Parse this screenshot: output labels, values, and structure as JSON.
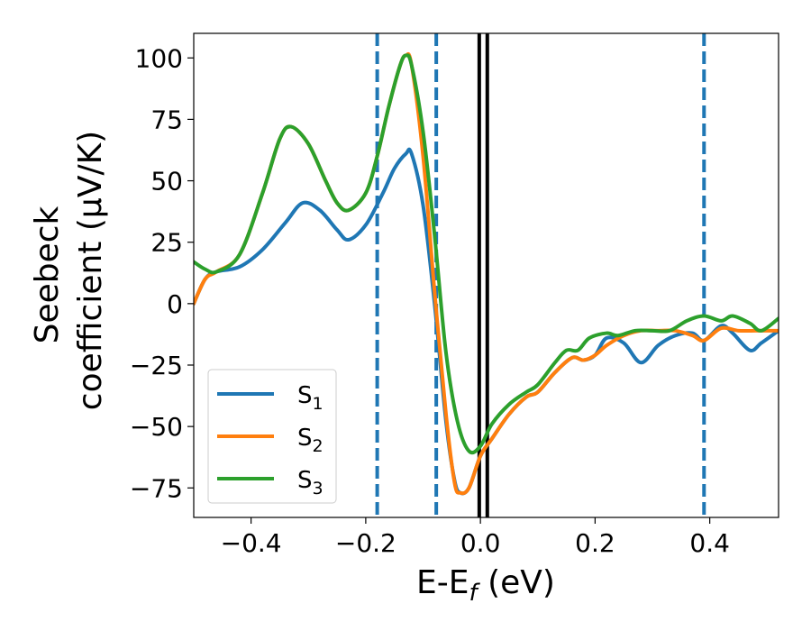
{
  "chart_data": {
    "type": "line",
    "xlabel": "E-E",
    "xlabel_sub": "f",
    "xlabel_suffix": " (eV)",
    "ylabel_line1": "Seebeck",
    "ylabel_line2": "coefficient  (μV/K)",
    "xlim": [
      -0.5,
      0.52
    ],
    "ylim": [
      -87,
      110
    ],
    "xticks": [
      -0.4,
      -0.2,
      0.0,
      0.2,
      0.4
    ],
    "xtick_labels": [
      "−0.4",
      "−0.2",
      "0.0",
      "0.2",
      "0.4"
    ],
    "yticks": [
      100,
      75,
      50,
      25,
      0,
      -25,
      -50,
      -75
    ],
    "ytick_labels": [
      "100",
      "75",
      "50",
      "25",
      "0",
      "−25",
      "−50",
      "−75"
    ],
    "grid": false,
    "legend_position": "lower-left",
    "series": [
      {
        "name": "S",
        "sub": "1",
        "color": "#1f77b4",
        "points": [
          [
            -0.5,
            0
          ],
          [
            -0.48,
            10
          ],
          [
            -0.46,
            13
          ],
          [
            -0.42,
            15
          ],
          [
            -0.38,
            22
          ],
          [
            -0.34,
            33
          ],
          [
            -0.31,
            41
          ],
          [
            -0.28,
            38
          ],
          [
            -0.25,
            30
          ],
          [
            -0.23,
            26
          ],
          [
            -0.2,
            32
          ],
          [
            -0.17,
            45
          ],
          [
            -0.15,
            55
          ],
          [
            -0.13,
            61
          ],
          [
            -0.12,
            61
          ],
          [
            -0.1,
            40
          ],
          [
            -0.08,
            0
          ],
          [
            -0.06,
            -48
          ],
          [
            -0.045,
            -72
          ],
          [
            -0.035,
            -77
          ],
          [
            -0.02,
            -75
          ],
          [
            0.0,
            -62
          ],
          [
            0.02,
            -55
          ],
          [
            0.05,
            -45
          ],
          [
            0.08,
            -38
          ],
          [
            0.1,
            -36
          ],
          [
            0.13,
            -28
          ],
          [
            0.16,
            -22
          ],
          [
            0.18,
            -23
          ],
          [
            0.2,
            -21
          ],
          [
            0.22,
            -14
          ],
          [
            0.25,
            -16
          ],
          [
            0.28,
            -24
          ],
          [
            0.31,
            -17
          ],
          [
            0.34,
            -13
          ],
          [
            0.37,
            -12
          ],
          [
            0.39,
            -15
          ],
          [
            0.42,
            -9
          ],
          [
            0.44,
            -12
          ],
          [
            0.47,
            -19
          ],
          [
            0.49,
            -16
          ],
          [
            0.52,
            -11
          ]
        ]
      },
      {
        "name": "S",
        "sub": "2",
        "color": "#ff7f0e",
        "points": [
          [
            -0.5,
            0
          ],
          [
            -0.48,
            10
          ],
          [
            -0.46,
            13
          ],
          [
            -0.42,
            20
          ],
          [
            -0.38,
            45
          ],
          [
            -0.35,
            67
          ],
          [
            -0.33,
            72
          ],
          [
            -0.3,
            65
          ],
          [
            -0.27,
            50
          ],
          [
            -0.25,
            41
          ],
          [
            -0.23,
            38
          ],
          [
            -0.2,
            45
          ],
          [
            -0.18,
            60
          ],
          [
            -0.16,
            80
          ],
          [
            -0.14,
            97
          ],
          [
            -0.13,
            101
          ],
          [
            -0.12,
            97
          ],
          [
            -0.1,
            60
          ],
          [
            -0.08,
            5
          ],
          [
            -0.06,
            -45
          ],
          [
            -0.045,
            -73
          ],
          [
            -0.035,
            -77
          ],
          [
            -0.02,
            -75
          ],
          [
            0.0,
            -62
          ],
          [
            0.02,
            -55
          ],
          [
            0.05,
            -45
          ],
          [
            0.08,
            -38
          ],
          [
            0.1,
            -36
          ],
          [
            0.13,
            -28
          ],
          [
            0.16,
            -22
          ],
          [
            0.18,
            -23
          ],
          [
            0.2,
            -21
          ],
          [
            0.22,
            -17
          ],
          [
            0.25,
            -13
          ],
          [
            0.28,
            -11
          ],
          [
            0.31,
            -11
          ],
          [
            0.34,
            -11
          ],
          [
            0.37,
            -13
          ],
          [
            0.39,
            -15
          ],
          [
            0.42,
            -10
          ],
          [
            0.45,
            -11
          ],
          [
            0.48,
            -11
          ],
          [
            0.52,
            -11
          ]
        ]
      },
      {
        "name": "S",
        "sub": "3",
        "color": "#2ca02c",
        "points": [
          [
            -0.5,
            17
          ],
          [
            -0.48,
            14
          ],
          [
            -0.46,
            13
          ],
          [
            -0.42,
            20
          ],
          [
            -0.38,
            45
          ],
          [
            -0.35,
            67
          ],
          [
            -0.33,
            72
          ],
          [
            -0.3,
            65
          ],
          [
            -0.27,
            50
          ],
          [
            -0.25,
            41
          ],
          [
            -0.23,
            38
          ],
          [
            -0.2,
            45
          ],
          [
            -0.18,
            60
          ],
          [
            -0.16,
            80
          ],
          [
            -0.14,
            97
          ],
          [
            -0.13,
            101
          ],
          [
            -0.12,
            97
          ],
          [
            -0.1,
            70
          ],
          [
            -0.08,
            28
          ],
          [
            -0.06,
            -20
          ],
          [
            -0.04,
            -48
          ],
          [
            -0.02,
            -60
          ],
          [
            0.0,
            -58
          ],
          [
            0.02,
            -49
          ],
          [
            0.05,
            -41
          ],
          [
            0.08,
            -36
          ],
          [
            0.1,
            -33
          ],
          [
            0.13,
            -24
          ],
          [
            0.15,
            -19
          ],
          [
            0.17,
            -19
          ],
          [
            0.19,
            -14
          ],
          [
            0.22,
            -12
          ],
          [
            0.24,
            -13
          ],
          [
            0.27,
            -11
          ],
          [
            0.3,
            -11
          ],
          [
            0.33,
            -11
          ],
          [
            0.36,
            -7
          ],
          [
            0.39,
            -5
          ],
          [
            0.42,
            -7
          ],
          [
            0.44,
            -5
          ],
          [
            0.47,
            -8
          ],
          [
            0.49,
            -11
          ],
          [
            0.52,
            -6
          ]
        ]
      }
    ],
    "vlines": [
      {
        "x": -0.18,
        "style": "dashed",
        "color": "#1f77b4"
      },
      {
        "x": -0.077,
        "style": "dashed",
        "color": "#1f77b4"
      },
      {
        "x": 0.39,
        "style": "dashed",
        "color": "#1f77b4"
      },
      {
        "x": -0.002,
        "style": "solid",
        "color": "#000000"
      },
      {
        "x": 0.012,
        "style": "solid",
        "color": "#000000"
      }
    ]
  }
}
